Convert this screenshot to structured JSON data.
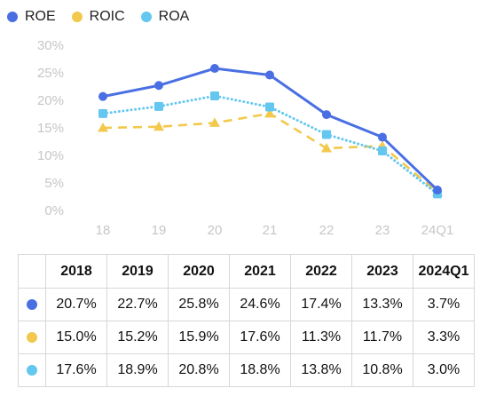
{
  "chart_data": {
    "type": "line",
    "categories": [
      "18",
      "19",
      "20",
      "21",
      "22",
      "23",
      "24Q1"
    ],
    "y_ticks": [
      "0%",
      "5%",
      "10%",
      "15%",
      "20%",
      "25%",
      "30%"
    ],
    "ylim": [
      0,
      30
    ],
    "grid": false,
    "legend": "top-left",
    "series": [
      {
        "name": "ROE",
        "color": "#4a6fe3",
        "marker": "circle",
        "dash": "solid",
        "values": [
          20.7,
          22.7,
          25.8,
          24.6,
          17.4,
          13.3,
          3.7
        ]
      },
      {
        "name": "ROIC",
        "color": "#f2c94c",
        "marker": "triangle",
        "dash": "dashed",
        "values": [
          15.0,
          15.2,
          15.9,
          17.6,
          11.3,
          11.7,
          3.3
        ]
      },
      {
        "name": "ROA",
        "color": "#63c7f0",
        "marker": "square",
        "dash": "dotted",
        "values": [
          17.6,
          18.9,
          20.8,
          18.8,
          13.8,
          10.8,
          3.0
        ]
      }
    ]
  },
  "table": {
    "headers": [
      "2018",
      "2019",
      "2020",
      "2021",
      "2022",
      "2023",
      "2024Q1"
    ],
    "rows": [
      {
        "color": "#4a6fe3",
        "cells": [
          "20.7%",
          "22.7%",
          "25.8%",
          "24.6%",
          "17.4%",
          "13.3%",
          "3.7%"
        ]
      },
      {
        "color": "#f2c94c",
        "cells": [
          "15.0%",
          "15.2%",
          "15.9%",
          "17.6%",
          "11.3%",
          "11.7%",
          "3.3%"
        ]
      },
      {
        "color": "#63c7f0",
        "cells": [
          "17.6%",
          "18.9%",
          "20.8%",
          "18.8%",
          "13.8%",
          "10.8%",
          "3.0%"
        ]
      }
    ]
  }
}
